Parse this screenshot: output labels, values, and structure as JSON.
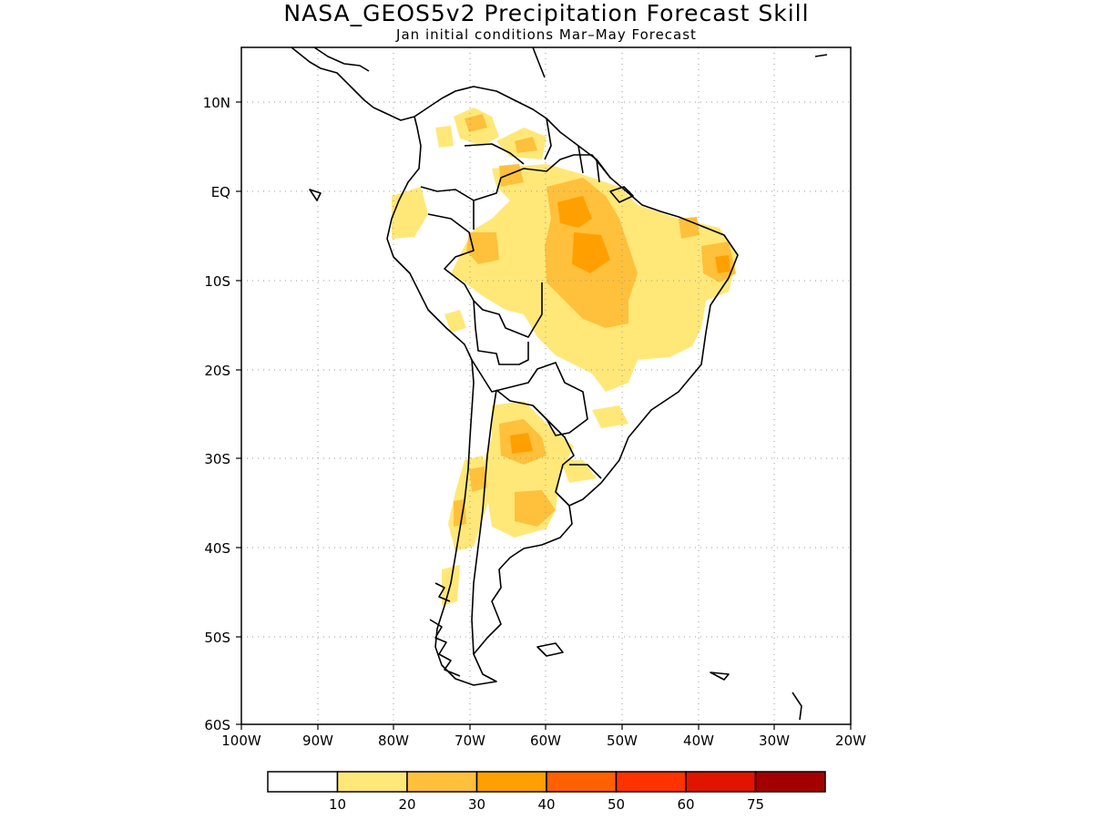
{
  "title": "NASA_GEOS5v2 Precipitation Forecast Skill",
  "subtitle": "Jan initial conditions  Mar–May Forecast",
  "map": {
    "lon_range": [
      -100,
      -20
    ],
    "lat_range": [
      -60,
      15
    ],
    "lon_ticks": [
      {
        "value": -100,
        "label": "100W"
      },
      {
        "value": -90,
        "label": "90W"
      },
      {
        "value": -80,
        "label": "80W"
      },
      {
        "value": -70,
        "label": "70W"
      },
      {
        "value": -60,
        "label": "60W"
      },
      {
        "value": -50,
        "label": "50W"
      },
      {
        "value": -40,
        "label": "40W"
      },
      {
        "value": -30,
        "label": "30W"
      },
      {
        "value": -20,
        "label": "20W"
      }
    ],
    "lat_ticks": [
      {
        "value": 10,
        "label": "10N"
      },
      {
        "value": 0,
        "label": "EQ"
      },
      {
        "value": -10,
        "label": "10S"
      },
      {
        "value": -20,
        "label": "20S"
      },
      {
        "value": -30,
        "label": "30S"
      },
      {
        "value": -40,
        "label": "40S"
      },
      {
        "value": -50,
        "label": "50S"
      },
      {
        "value": -60,
        "label": "60S"
      }
    ],
    "grid": true
  },
  "colorbar": {
    "labels": [
      "10",
      "20",
      "30",
      "40",
      "50",
      "60",
      "75"
    ],
    "colors": [
      "#ffffff",
      "#ffe878",
      "#ffc03c",
      "#ffa000",
      "#ff6000",
      "#ff3200",
      "#e11400",
      "#a50000"
    ]
  }
}
